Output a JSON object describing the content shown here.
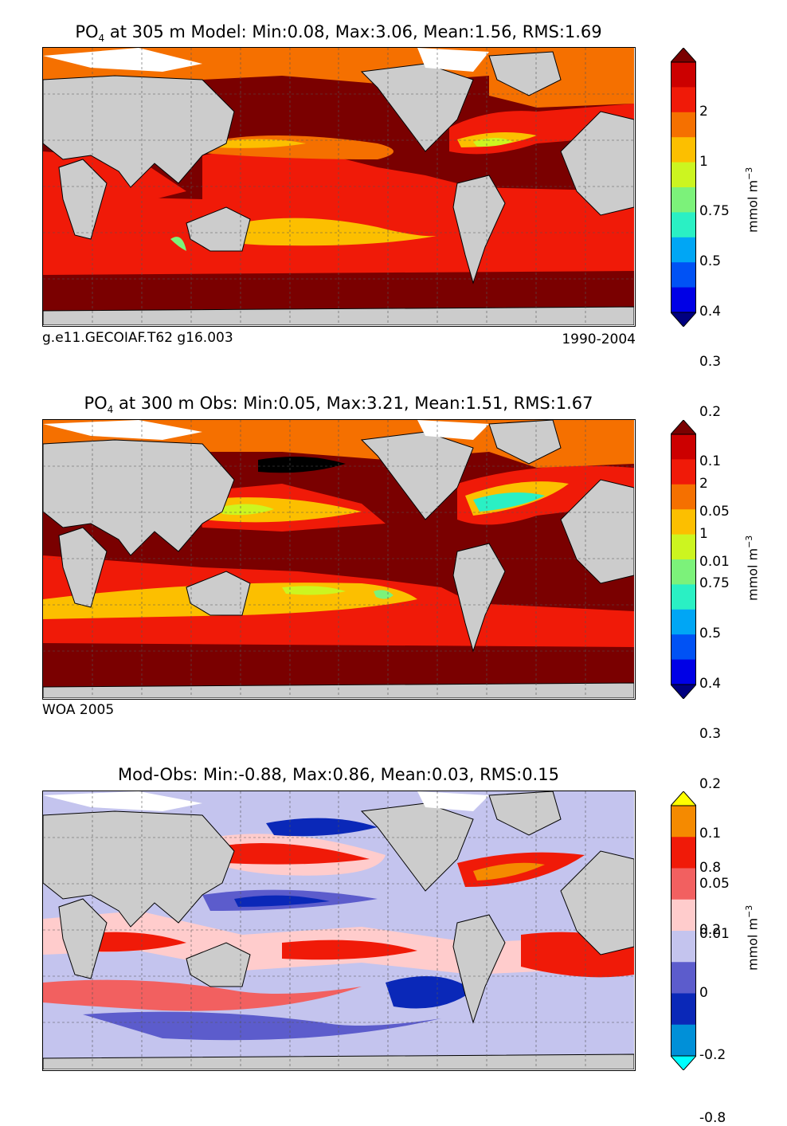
{
  "panels": [
    {
      "title_prefix": "PO",
      "title_sub": "4",
      "title_rest": " at 305 m Model: Min:0.08, Max:3.06, Mean:1.56, RMS:1.69",
      "caption_left": "g.e11.GECOIAF.T62 g16.003",
      "caption_right": "1990-2004",
      "colorbar": {
        "ticks": [
          "2",
          "1",
          "0.75",
          "0.5",
          "0.4",
          "0.3",
          "0.2",
          "0.1",
          "0.05",
          "0.01"
        ],
        "colors": [
          "#7a0000",
          "#cc0000",
          "#f01a08",
          "#f57000",
          "#fcbf00",
          "#ccf520",
          "#7cf27a",
          "#2af0c4",
          "#00a6f5",
          "#0052f5",
          "#0000e6",
          "#000080"
        ],
        "unit": "mmol m",
        "unit_exp": "−3"
      }
    },
    {
      "title_prefix": "PO",
      "title_sub": "4",
      "title_rest": " at 300 m Obs: Min:0.05, Max:3.21, Mean:1.51, RMS:1.67",
      "caption_left": "WOA 2005",
      "caption_right": "",
      "colorbar": {
        "ticks": [
          "2",
          "1",
          "0.75",
          "0.5",
          "0.4",
          "0.3",
          "0.2",
          "0.1",
          "0.05",
          "0.01"
        ],
        "colors": [
          "#7a0000",
          "#cc0000",
          "#f01a08",
          "#f57000",
          "#fcbf00",
          "#ccf520",
          "#7cf27a",
          "#2af0c4",
          "#00a6f5",
          "#0052f5",
          "#0000e6",
          "#000080"
        ],
        "unit": "mmol m",
        "unit_exp": "−3"
      }
    },
    {
      "title_prefix": "",
      "title_sub": "",
      "title_rest": "Mod-Obs: Min:-0.88, Max:0.86, Mean:0.03, RMS:0.15",
      "caption_left": "",
      "caption_right": "",
      "colorbar": {
        "ticks": [
          "0.8",
          "0.2",
          "0",
          "-0.2",
          "-0.8"
        ],
        "colors": [
          "#ffff00",
          "#f58a00",
          "#f01a08",
          "#f26060",
          "#ffcccc",
          "#c4c4ee",
          "#5c5ccc",
          "#0a28b8",
          "#0090d8",
          "#00ffff"
        ],
        "unit": "mmol m",
        "unit_exp": "−3"
      }
    }
  ],
  "chart_data": [
    {
      "type": "heatmap",
      "title": "PO4 at 305 m Model: Min:0.08, Max:3.06, Mean:1.56, RMS:1.69",
      "variable": "PO4",
      "depth": "305 m",
      "source": "Model",
      "stats": {
        "min": 0.08,
        "max": 3.06,
        "mean": 1.56,
        "rms": 1.69
      },
      "case": "g.e11.GECOIAF.T62 g16.003",
      "period": "1990-2004",
      "levels": [
        0.01,
        0.05,
        0.1,
        0.2,
        0.3,
        0.4,
        0.5,
        0.75,
        1,
        2
      ],
      "colorbar_unit": "mmol m^-3",
      "land_color": "#cccccc",
      "grid": true
    },
    {
      "type": "heatmap",
      "title": "PO4 at 300 m Obs: Min:0.05, Max:3.21, Mean:1.51, RMS:1.67",
      "variable": "PO4",
      "depth": "300 m",
      "source": "Obs",
      "stats": {
        "min": 0.05,
        "max": 3.21,
        "mean": 1.51,
        "rms": 1.67
      },
      "dataset": "WOA 2005",
      "levels": [
        0.01,
        0.05,
        0.1,
        0.2,
        0.3,
        0.4,
        0.5,
        0.75,
        1,
        2
      ],
      "colorbar_unit": "mmol m^-3",
      "land_color": "#cccccc",
      "grid": true
    },
    {
      "type": "heatmap",
      "title": "Mod-Obs: Min:-0.88, Max:0.86, Mean:0.03, RMS:0.15",
      "source": "Mod-Obs",
      "stats": {
        "min": -0.88,
        "max": 0.86,
        "mean": 0.03,
        "rms": 0.15
      },
      "levels": [
        -0.8,
        -0.2,
        0,
        0.2,
        0.8
      ],
      "colorbar_unit": "mmol m^-3",
      "land_color": "#cccccc",
      "grid": true
    }
  ]
}
